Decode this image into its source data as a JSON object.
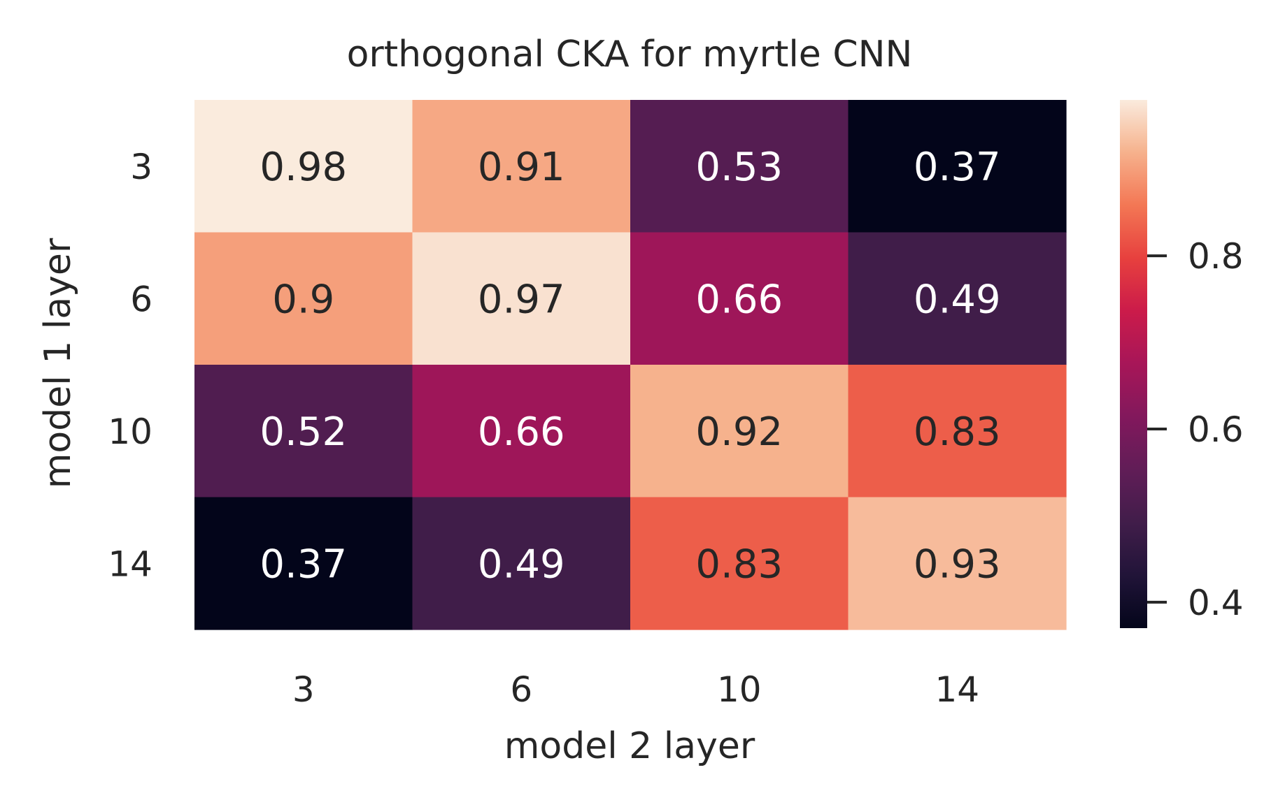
{
  "chart_data": {
    "type": "heatmap",
    "title": "orthogonal CKA for myrtle CNN",
    "xlabel": "model 2 layer",
    "ylabel": "model 1 layer",
    "x_categories": [
      "3",
      "6",
      "10",
      "14"
    ],
    "y_categories": [
      "3",
      "6",
      "10",
      "14"
    ],
    "values": [
      [
        0.98,
        0.91,
        0.53,
        0.37
      ],
      [
        0.9,
        0.97,
        0.66,
        0.49
      ],
      [
        0.52,
        0.66,
        0.92,
        0.83
      ],
      [
        0.37,
        0.49,
        0.83,
        0.93
      ]
    ],
    "annotations": [
      [
        "0.98",
        "0.91",
        "0.53",
        "0.37"
      ],
      [
        "0.9",
        "0.97",
        "0.66",
        "0.49"
      ],
      [
        "0.52",
        "0.66",
        "0.92",
        "0.83"
      ],
      [
        "0.37",
        "0.49",
        "0.83",
        "0.93"
      ]
    ],
    "colormap": "rocket",
    "color_range": [
      0.37,
      0.98
    ],
    "colorbar_ticks": [
      "0.4",
      "0.6",
      "0.8"
    ],
    "colorbar_tick_values": [
      0.4,
      0.6,
      0.8
    ],
    "grid": false
  }
}
